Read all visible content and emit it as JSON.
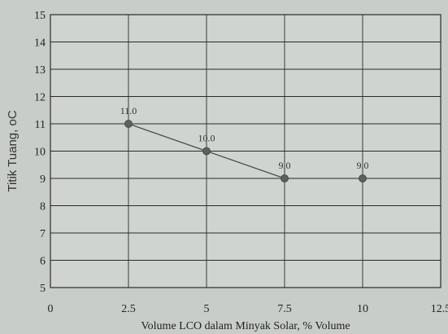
{
  "chart_data": {
    "type": "line",
    "title": "",
    "xlabel": "Volume LCO dalam Minyak Solar, % Volume",
    "ylabel": "Titik Tuang, oC",
    "xlim": [
      0,
      12.5
    ],
    "ylim": [
      5,
      15
    ],
    "x_ticks": [
      0,
      2.5,
      5,
      7.5,
      10,
      12.5
    ],
    "x_tick_labels": [
      "0",
      "2.5",
      "5",
      "7.5",
      "10",
      "12.5"
    ],
    "y_ticks": [
      5,
      6,
      7,
      8,
      9,
      10,
      11,
      12,
      13,
      14,
      15
    ],
    "y_tick_labels": [
      "5",
      "6",
      "7",
      "8",
      "9",
      "10",
      "11",
      "12",
      "13",
      "14",
      "15"
    ],
    "grid": true,
    "series": [
      {
        "x": [
          2.5,
          5,
          7.5,
          10
        ],
        "y": [
          11.0,
          10.0,
          9.0,
          9.0
        ],
        "labels": [
          "11.0",
          "10.0",
          "9.0",
          "9.0"
        ]
      }
    ],
    "colors": {
      "background": "#c9cdc9",
      "plot_background": "#d0d4d0",
      "grid": "#2a2a2a",
      "line": "#4a4a4a",
      "marker": "#5a635a"
    }
  }
}
